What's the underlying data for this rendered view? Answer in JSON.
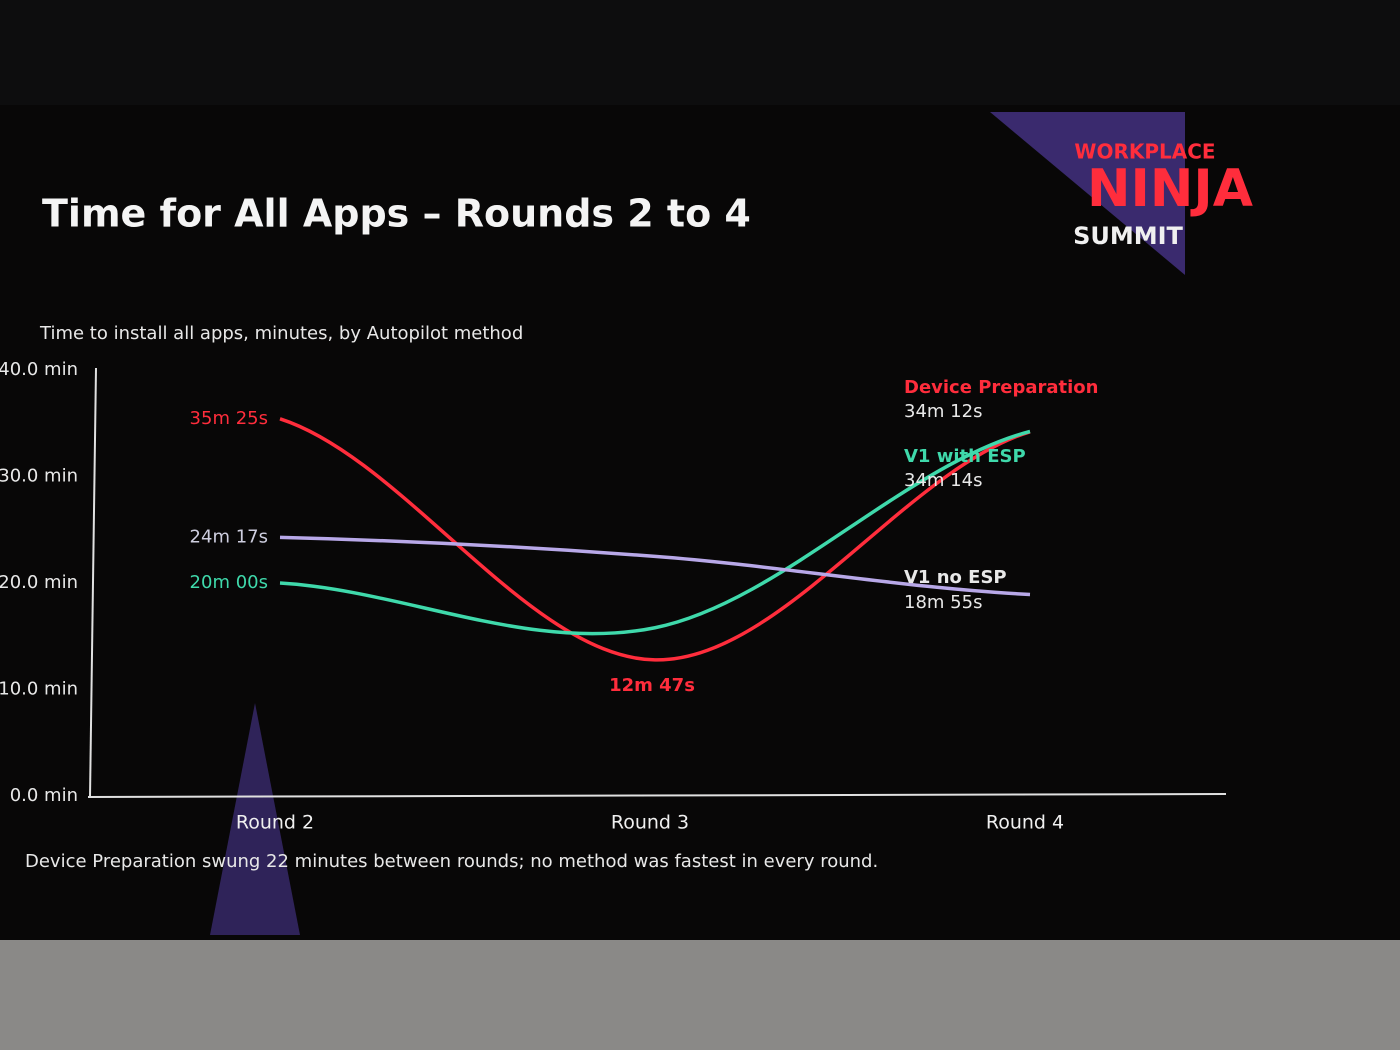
{
  "chart_data": {
    "type": "line",
    "title": "Time for All Apps – Rounds 2 to 4",
    "subtitle": "Time to install all apps, minutes, by Autopilot method",
    "note": "Device Preparation swung 22 minutes between rounds; no method was fastest in every round.",
    "categories": [
      "Round 2",
      "Round 3",
      "Round 4"
    ],
    "ylim": [
      0,
      40
    ],
    "yticks": [
      {
        "value": 0,
        "label": "0.0 min"
      },
      {
        "value": 10,
        "label": "10.0 min"
      },
      {
        "value": 20,
        "label": "20.0 min"
      },
      {
        "value": 30,
        "label": "30.0 min"
      },
      {
        "value": 40,
        "label": "40.0 min"
      }
    ],
    "grid": false,
    "series": [
      {
        "name": "Device Preparation",
        "color": "#ff2d3c",
        "values": [
          35.42,
          12.78,
          34.2
        ],
        "value_labels": [
          "35m 25s",
          "12m 47s",
          "34m 12s"
        ]
      },
      {
        "name": "V1 with ESP",
        "color": "#3fd9ab",
        "values": [
          20,
          15.8,
          34.23
        ],
        "value_labels": [
          "20m 00s",
          null,
          "34m 14s"
        ]
      },
      {
        "name": "V1 no ESP",
        "color": "#b8a8e8",
        "values": [
          24.28,
          22.5,
          18.92
        ],
        "value_labels": [
          "24m 17s",
          null,
          "18m 55s"
        ]
      }
    ]
  },
  "logo": {
    "line1": "WORKPLACE",
    "line2": "NINJA",
    "line3": "SUMMIT"
  }
}
